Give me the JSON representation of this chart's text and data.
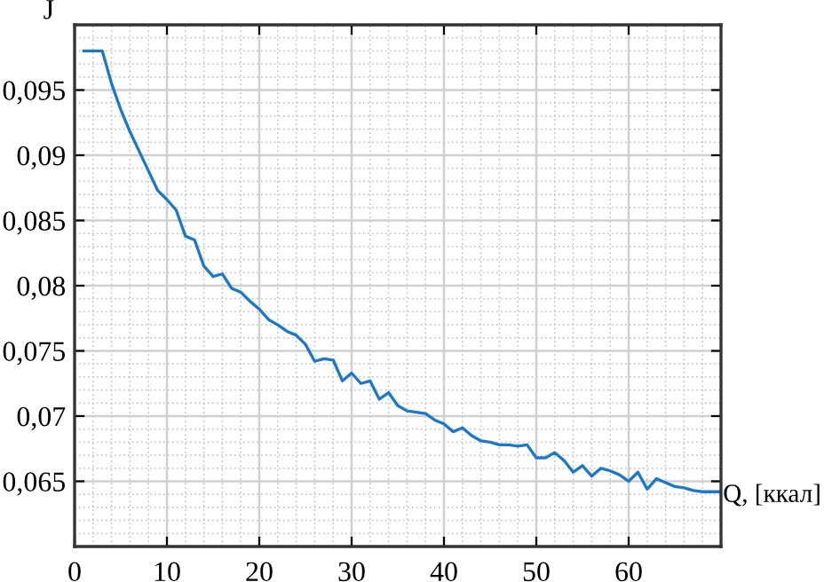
{
  "chart_data": {
    "type": "line",
    "xlabel": "Q, [ккал]",
    "ylabel": "J",
    "x": [
      1,
      2,
      3,
      4,
      5,
      6,
      7,
      8,
      9,
      10,
      11,
      12,
      13,
      14,
      15,
      16,
      17,
      18,
      19,
      20,
      21,
      22,
      23,
      24,
      25,
      26,
      27,
      28,
      29,
      30,
      31,
      32,
      33,
      34,
      35,
      36,
      37,
      38,
      39,
      40,
      41,
      42,
      43,
      44,
      45,
      46,
      47,
      48,
      49,
      50,
      51,
      52,
      53,
      54,
      55,
      56,
      57,
      58,
      59,
      60,
      61,
      62,
      63,
      64,
      65,
      66,
      67,
      68,
      69,
      70
    ],
    "series": [
      {
        "color": "#1f77c8",
        "values": [
          0.098,
          0.098,
          0.098,
          0.0955,
          0.0935,
          0.0918,
          0.0903,
          0.0888,
          0.0873,
          0.0866,
          0.0858,
          0.0838,
          0.0835,
          0.0815,
          0.0807,
          0.0809,
          0.0798,
          0.0795,
          0.0788,
          0.0782,
          0.0774,
          0.077,
          0.0765,
          0.0762,
          0.0755,
          0.0742,
          0.0744,
          0.0743,
          0.0727,
          0.0733,
          0.0725,
          0.0727,
          0.0713,
          0.0718,
          0.0708,
          0.0704,
          0.0703,
          0.0702,
          0.0697,
          0.0694,
          0.0688,
          0.0691,
          0.0685,
          0.0681,
          0.068,
          0.0678,
          0.0678,
          0.0677,
          0.0678,
          0.0668,
          0.0668,
          0.0672,
          0.0666,
          0.0657,
          0.0662,
          0.0654,
          0.066,
          0.0658,
          0.0655,
          0.065,
          0.0657,
          0.0644,
          0.0652,
          0.0649,
          0.0646,
          0.0645,
          0.0643,
          0.0642,
          0.0642,
          0.0642
        ]
      }
    ],
    "xlim": [
      0,
      70
    ],
    "xticks": [
      0,
      10,
      20,
      30,
      40,
      50,
      60
    ],
    "ylim": [
      0.06,
      0.1
    ],
    "yticks": [
      {
        "value": 0.065,
        "label": "0,065"
      },
      {
        "value": 0.07,
        "label": "0,07"
      },
      {
        "value": 0.075,
        "label": "0,075"
      },
      {
        "value": 0.08,
        "label": "0,08"
      },
      {
        "value": 0.085,
        "label": "0,085"
      },
      {
        "value": 0.09,
        "label": "0,09"
      },
      {
        "value": 0.095,
        "label": "0,095"
      }
    ],
    "grid": true,
    "legend": false,
    "marker": "none",
    "line_style": "solid"
  }
}
